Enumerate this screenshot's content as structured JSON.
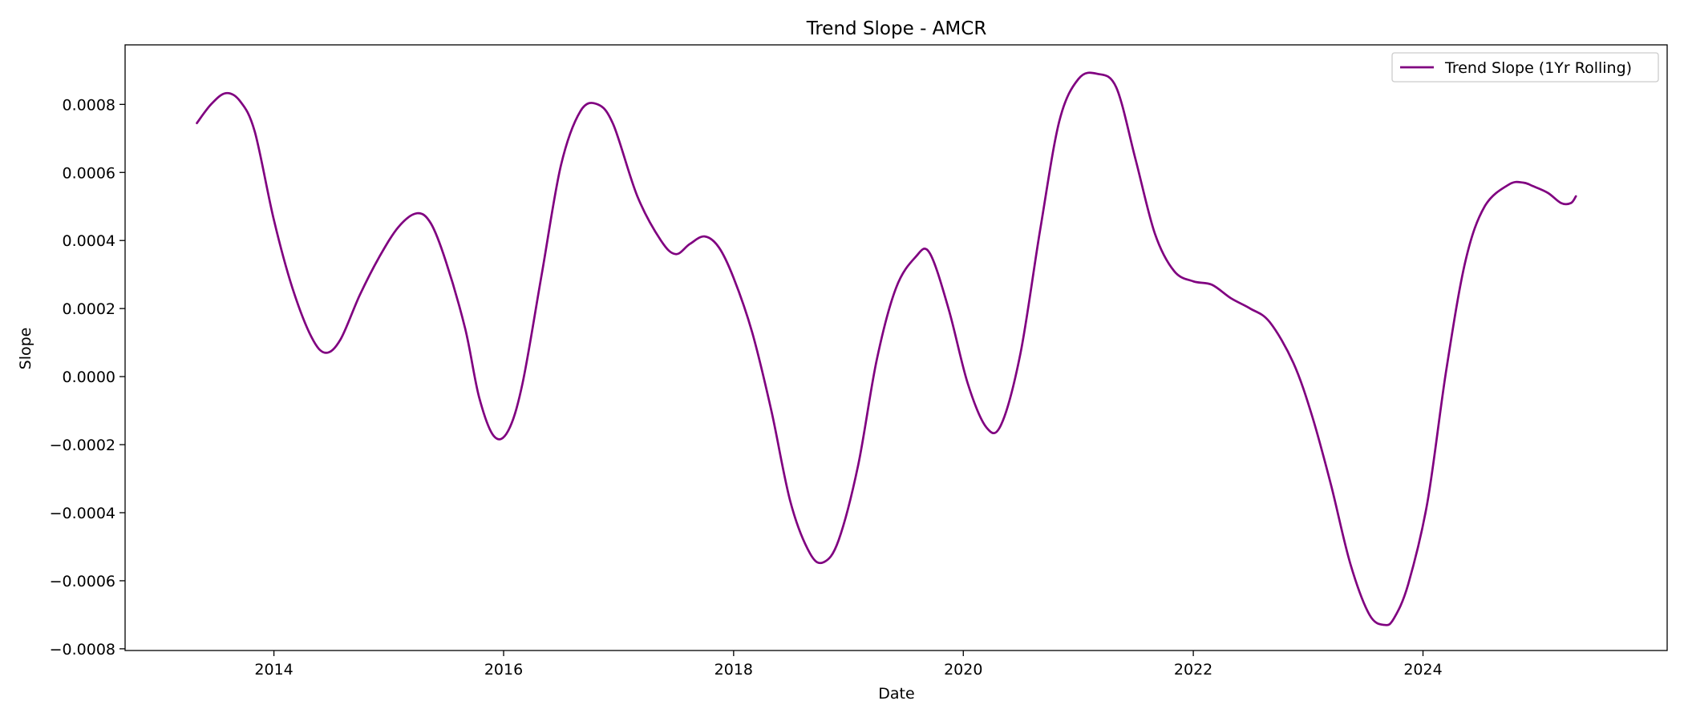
{
  "chart_data": {
    "type": "line",
    "title": "Trend Slope - AMCR",
    "xlabel": "Date",
    "ylabel": "Slope",
    "xlim": [
      "2012-09-15",
      "2026-02-15"
    ],
    "ylim": [
      -0.000805,
      0.000975
    ],
    "x_ticks": [
      {
        "value": "2014-01-01",
        "label": "2014"
      },
      {
        "value": "2016-01-01",
        "label": "2016"
      },
      {
        "value": "2018-01-01",
        "label": "2018"
      },
      {
        "value": "2020-01-01",
        "label": "2020"
      },
      {
        "value": "2022-01-01",
        "label": "2022"
      },
      {
        "value": "2024-01-01",
        "label": "2024"
      }
    ],
    "y_ticks": [
      {
        "value": 0.0008,
        "label": "0.0008"
      },
      {
        "value": 0.0006,
        "label": "0.0006"
      },
      {
        "value": 0.0004,
        "label": "0.0004"
      },
      {
        "value": 0.0002,
        "label": "0.0002"
      },
      {
        "value": 0.0,
        "label": "0.0000"
      },
      {
        "value": -0.0002,
        "label": "−0.0002"
      },
      {
        "value": -0.0004,
        "label": "−0.0004"
      },
      {
        "value": -0.0006,
        "label": "−0.0006"
      },
      {
        "value": -0.0008,
        "label": "−0.0008"
      }
    ],
    "grid": false,
    "legend_position": "top-right",
    "series": [
      {
        "name": "Trend Slope (1Yr Rolling)",
        "color": "#800080",
        "x": [
          "2013-05-01",
          "2013-06-15",
          "2013-08-01",
          "2013-09-15",
          "2013-11-01",
          "2014-01-01",
          "2014-03-01",
          "2014-05-01",
          "2014-06-15",
          "2014-08-01",
          "2014-10-01",
          "2014-12-01",
          "2015-02-01",
          "2015-04-01",
          "2015-05-15",
          "2015-07-01",
          "2015-09-01",
          "2015-10-15",
          "2015-12-01",
          "2016-01-15",
          "2016-03-01",
          "2016-05-01",
          "2016-07-01",
          "2016-09-01",
          "2016-10-26",
          "2016-12-15",
          "2017-03-01",
          "2017-05-15",
          "2017-07-01",
          "2017-08-15",
          "2017-10-01",
          "2017-11-15",
          "2018-01-01",
          "2018-03-01",
          "2018-05-01",
          "2018-07-01",
          "2018-09-01",
          "2018-10-15",
          "2018-12-01",
          "2019-02-01",
          "2019-04-01",
          "2019-06-01",
          "2019-08-01",
          "2019-09-15",
          "2019-11-15",
          "2020-01-15",
          "2020-03-15",
          "2020-05-01",
          "2020-07-01",
          "2020-09-01",
          "2020-11-01",
          "2021-01-01",
          "2021-03-01",
          "2021-05-01",
          "2021-07-01",
          "2021-09-01",
          "2021-11-01",
          "2022-01-01",
          "2022-03-01",
          "2022-05-01",
          "2022-07-01",
          "2022-09-01",
          "2022-11-15",
          "2023-01-15",
          "2023-03-15",
          "2023-05-15",
          "2023-07-15",
          "2023-09-01",
          "2023-10-01",
          "2023-11-15",
          "2024-01-15",
          "2024-03-15",
          "2024-05-15",
          "2024-07-15",
          "2024-10-01",
          "2024-11-15",
          "2024-12-15",
          "2025-02-01",
          "2025-03-15",
          "2025-04-15",
          "2025-05-01"
        ],
        "values": [
          0.000745,
          0.0008,
          0.000833,
          0.00081,
          0.00072,
          0.00046,
          0.00026,
          0.000115,
          7e-05,
          0.00011,
          0.00024,
          0.00035,
          0.00044,
          0.00048,
          0.00045,
          0.00034,
          0.00014,
          -6e-05,
          -0.000175,
          -0.00016,
          -2e-05,
          0.0003,
          0.00062,
          0.00078,
          0.0008,
          0.00074,
          0.00053,
          0.0004,
          0.00036,
          0.00039,
          0.000412,
          0.00038,
          0.00029,
          0.00013,
          -0.0001,
          -0.00037,
          -0.00052,
          -0.000545,
          -0.00048,
          -0.00026,
          5e-05,
          0.00026,
          0.00035,
          0.000365,
          0.0002,
          -2e-05,
          -0.00015,
          -0.00014,
          7e-05,
          0.00043,
          0.00075,
          0.000875,
          0.00089,
          0.00085,
          0.00064,
          0.00042,
          0.00031,
          0.00028,
          0.00027,
          0.00023,
          0.0002,
          0.00016,
          4e-05,
          -0.00012,
          -0.00032,
          -0.00055,
          -0.0007,
          -0.00073,
          -0.00071,
          -0.00061,
          -0.00037,
          2e-05,
          0.00034,
          0.0005,
          0.000565,
          0.00057,
          0.00056,
          0.00054,
          0.00051,
          0.00051,
          0.00053
        ]
      }
    ]
  }
}
